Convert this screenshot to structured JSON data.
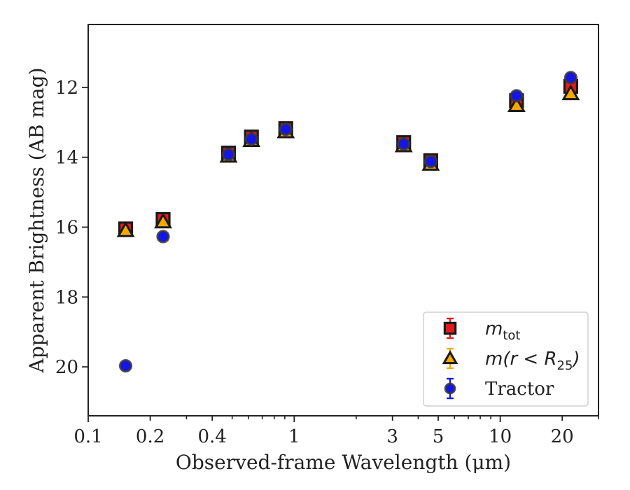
{
  "chart_data": {
    "type": "scatter",
    "xlabel": "Observed-frame Wavelength (μm)",
    "ylabel": "Apparent Brightness (AB mag)",
    "xscale": "log",
    "xlim": [
      0.1,
      30
    ],
    "ylim": [
      21.4,
      10.2
    ],
    "y_inverted": true,
    "grid": false,
    "legend_position": "lower-right",
    "xticks": [
      {
        "value": 0.1,
        "label": "0.1"
      },
      {
        "value": 0.2,
        "label": "0.2"
      },
      {
        "value": 0.4,
        "label": "0.4"
      },
      {
        "value": 1,
        "label": "1"
      },
      {
        "value": 3,
        "label": "3"
      },
      {
        "value": 5,
        "label": "5"
      },
      {
        "value": 10,
        "label": "10"
      },
      {
        "value": 20,
        "label": "20"
      }
    ],
    "yticks": [
      {
        "value": 12,
        "label": "12"
      },
      {
        "value": 14,
        "label": "14"
      },
      {
        "value": 16,
        "label": "16"
      },
      {
        "value": 18,
        "label": "18"
      },
      {
        "value": 20,
        "label": "20"
      }
    ],
    "series": [
      {
        "key": "mtot",
        "legend_main": "m",
        "legend_sub": "tot",
        "legend_suffix": "",
        "marker": "square",
        "face_color": "#e31a1c",
        "edge_color": "#1a1a1a",
        "errbar_color": "#e31a1c",
        "x": [
          0.152,
          0.231,
          0.48,
          0.62,
          0.91,
          3.4,
          4.6,
          12.0,
          22.0
        ],
        "y": [
          16.05,
          15.78,
          13.88,
          13.42,
          13.18,
          13.58,
          14.1,
          12.38,
          11.97
        ]
      },
      {
        "key": "m25",
        "legend_main": "m(r < R",
        "legend_sub": "25",
        "legend_suffix": ")",
        "marker": "triangle",
        "face_color": "#f5a800",
        "edge_color": "#1a1a1a",
        "errbar_color": "#f5a800",
        "x": [
          0.152,
          0.231,
          0.48,
          0.62,
          0.91,
          3.4,
          4.6,
          12.0,
          22.0
        ],
        "y": [
          16.1,
          15.85,
          13.97,
          13.52,
          13.27,
          13.67,
          14.2,
          12.52,
          12.18
        ]
      },
      {
        "name": "Tractor",
        "key": "tractor",
        "marker": "circle",
        "face_color": "#1515e6",
        "edge_color": "#3a3a3a",
        "errbar_color": "#1515e6",
        "x": [
          0.152,
          0.231,
          0.48,
          0.62,
          0.91,
          3.4,
          4.6,
          12.0,
          22.0
        ],
        "y": [
          19.97,
          16.27,
          13.92,
          13.48,
          13.2,
          13.62,
          14.12,
          12.24,
          11.72
        ]
      }
    ]
  }
}
